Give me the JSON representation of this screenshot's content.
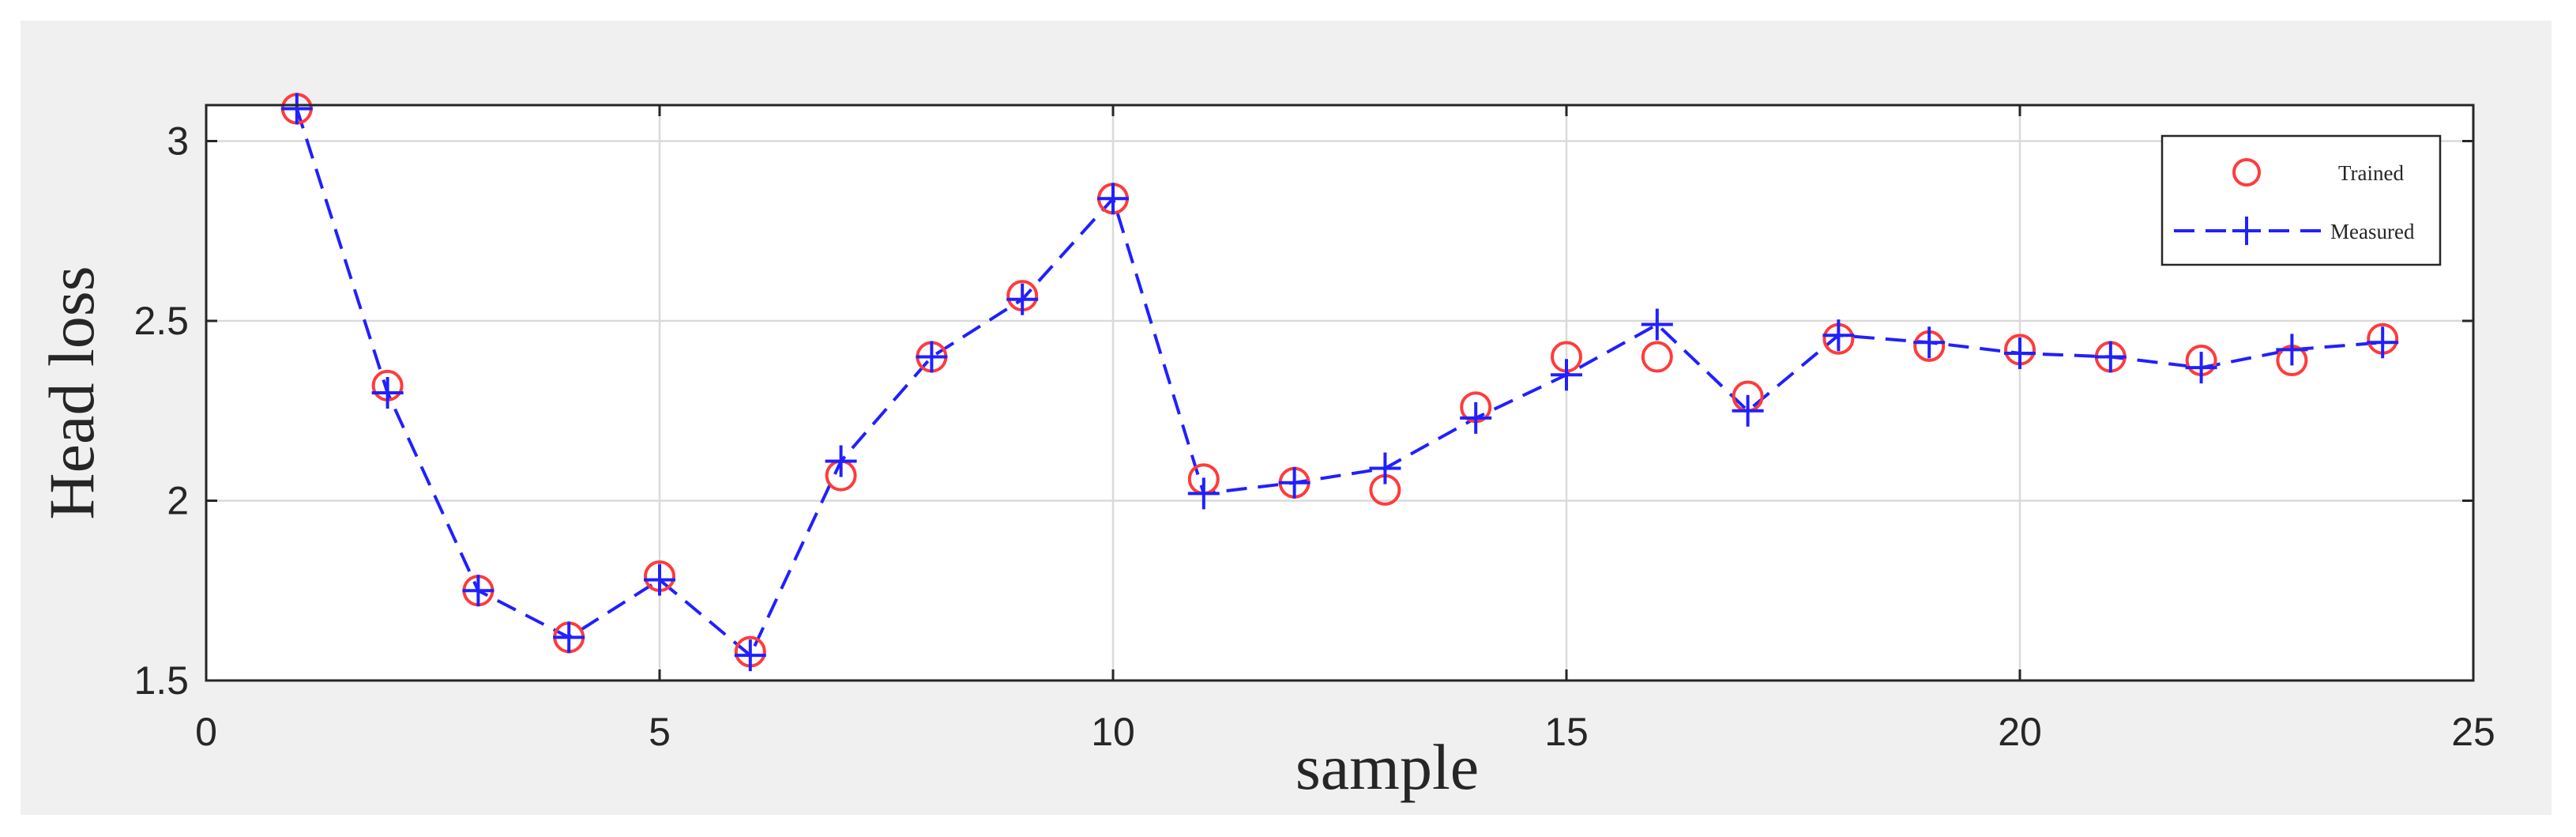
{
  "chart_data": {
    "type": "line",
    "xlabel": "sample",
    "ylabel": "Head loss",
    "xlim": [
      0,
      25
    ],
    "ylim": [
      1.5,
      3.1
    ],
    "xticks": [
      0,
      5,
      10,
      15,
      20,
      25
    ],
    "yticks": [
      1.5,
      2,
      2.5,
      3
    ],
    "xtick_labels": [
      "0",
      "5",
      "10",
      "15",
      "20",
      "25"
    ],
    "ytick_labels": [
      "1.5",
      "2",
      "2.5",
      "3"
    ],
    "grid": true,
    "legend_position": "top-right",
    "series": [
      {
        "name": "Trained",
        "marker": "circle",
        "line": "none",
        "color": "#ff3b3b",
        "x": [
          1,
          2,
          3,
          4,
          5,
          6,
          7,
          8,
          9,
          10,
          11,
          12,
          13,
          14,
          15,
          16,
          17,
          18,
          19,
          20,
          21,
          22,
          23,
          24
        ],
        "y": [
          3.09,
          2.32,
          1.75,
          1.62,
          1.79,
          1.58,
          2.07,
          2.4,
          2.57,
          2.84,
          2.06,
          2.05,
          2.03,
          2.26,
          2.4,
          2.4,
          2.29,
          2.45,
          2.43,
          2.42,
          2.4,
          2.39,
          2.39,
          2.45
        ]
      },
      {
        "name": "Measured",
        "marker": "plus",
        "line": "dashed",
        "color": "#2020ff",
        "x": [
          1,
          2,
          3,
          4,
          5,
          6,
          7,
          8,
          9,
          10,
          11,
          12,
          13,
          14,
          15,
          16,
          17,
          18,
          19,
          20,
          21,
          22,
          23,
          24
        ],
        "y": [
          3.09,
          2.3,
          1.75,
          1.62,
          1.78,
          1.57,
          2.11,
          2.4,
          2.56,
          2.84,
          2.02,
          2.05,
          2.09,
          2.23,
          2.35,
          2.49,
          2.25,
          2.46,
          2.44,
          2.41,
          2.4,
          2.37,
          2.42,
          2.44
        ]
      }
    ]
  }
}
